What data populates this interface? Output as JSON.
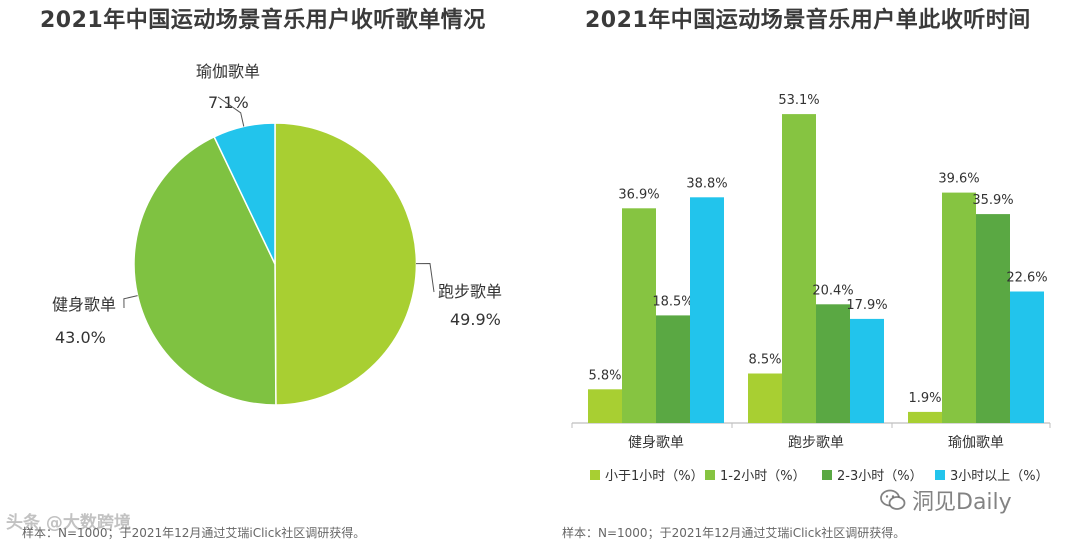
{
  "chart_data": [
    {
      "type": "pie",
      "title": "2021年中国运动场景音乐用户收听歌单情况",
      "slices": [
        {
          "label": "跑步歌单",
          "value": 49.9,
          "display": "49.9%",
          "color": "#a8cf32"
        },
        {
          "label": "健身歌单",
          "value": 43.0,
          "display": "43.0%",
          "color": "#7fc241"
        },
        {
          "label": "瑜伽歌单",
          "value": 7.1,
          "display": "7.1%",
          "color": "#22c4ec"
        }
      ],
      "source": "样本：N=1000；于2021年12月通过艾瑞iClick社区调研获得。"
    },
    {
      "type": "bar",
      "title": "2021年中国运动场景音乐用户单此收听时间",
      "categories": [
        "健身歌单",
        "跑步歌单",
        "瑜伽歌单"
      ],
      "series": [
        {
          "name": "小于1小时（%）",
          "color": "#a8cf32",
          "values": [
            5.8,
            8.5,
            1.9
          ],
          "labels": [
            "5.8%",
            "8.5%",
            "1.9%"
          ]
        },
        {
          "name": "1-2小时（%）",
          "color": "#86c441",
          "values": [
            36.9,
            53.1,
            39.6
          ],
          "labels": [
            "36.9%",
            "53.1%",
            "39.6%"
          ]
        },
        {
          "name": "2-3小时（%）",
          "color": "#5aa843",
          "values": [
            18.5,
            20.4,
            35.9
          ],
          "labels": [
            "18.5%",
            "20.4%",
            "35.9%"
          ]
        },
        {
          "name": "3小时以上（%）",
          "color": "#22c4ec",
          "values": [
            38.8,
            17.9,
            22.6
          ],
          "labels": [
            "38.8%",
            "17.9%",
            "22.6%"
          ]
        }
      ],
      "ylim": [
        0,
        55
      ],
      "xlabel": "",
      "ylabel": "",
      "legend_position": "bottom",
      "source": "样本：N=1000；于2021年12月通过艾瑞iClick社区调研获得。"
    }
  ],
  "watermarks": {
    "left": "头条 @大数跨境",
    "right": "洞见Daily"
  }
}
